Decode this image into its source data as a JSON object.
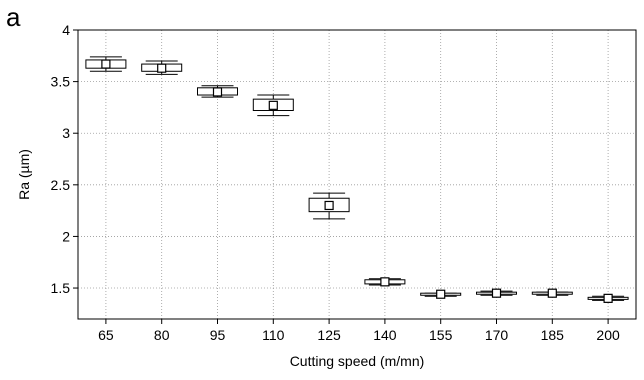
{
  "panel_label": "a",
  "chart_data": {
    "type": "box",
    "title": "",
    "xlabel": "Cutting speed (m/mn)",
    "ylabel": "Ra (µm)",
    "ylim": [
      1.2,
      4.0
    ],
    "yticks": [
      1.5,
      2,
      2.5,
      3,
      3.5,
      4
    ],
    "ytick_labels": [
      "1.5",
      "2",
      "2.5",
      "3",
      "3.5",
      "4"
    ],
    "grid": true,
    "categories": [
      "65",
      "80",
      "95",
      "110",
      "125",
      "140",
      "155",
      "170",
      "185",
      "200"
    ],
    "boxes": [
      {
        "whisker_low": 3.6,
        "q1": 3.63,
        "median": 3.67,
        "q3": 3.71,
        "whisker_high": 3.74
      },
      {
        "whisker_low": 3.57,
        "q1": 3.6,
        "median": 3.63,
        "q3": 3.67,
        "whisker_high": 3.7
      },
      {
        "whisker_low": 3.35,
        "q1": 3.37,
        "median": 3.4,
        "q3": 3.44,
        "whisker_high": 3.46
      },
      {
        "whisker_low": 3.17,
        "q1": 3.22,
        "median": 3.27,
        "q3": 3.33,
        "whisker_high": 3.37
      },
      {
        "whisker_low": 2.17,
        "q1": 2.24,
        "median": 2.3,
        "q3": 2.37,
        "whisker_high": 2.42
      },
      {
        "whisker_low": 1.53,
        "q1": 1.54,
        "median": 1.56,
        "q3": 1.58,
        "whisker_high": 1.59
      },
      {
        "whisker_low": 1.42,
        "q1": 1.43,
        "median": 1.44,
        "q3": 1.45,
        "whisker_high": 1.45
      },
      {
        "whisker_low": 1.43,
        "q1": 1.44,
        "median": 1.45,
        "q3": 1.46,
        "whisker_high": 1.47
      },
      {
        "whisker_low": 1.43,
        "q1": 1.44,
        "median": 1.45,
        "q3": 1.46,
        "whisker_high": 1.46
      },
      {
        "whisker_low": 1.38,
        "q1": 1.39,
        "median": 1.4,
        "q3": 1.41,
        "whisker_high": 1.42
      }
    ]
  }
}
